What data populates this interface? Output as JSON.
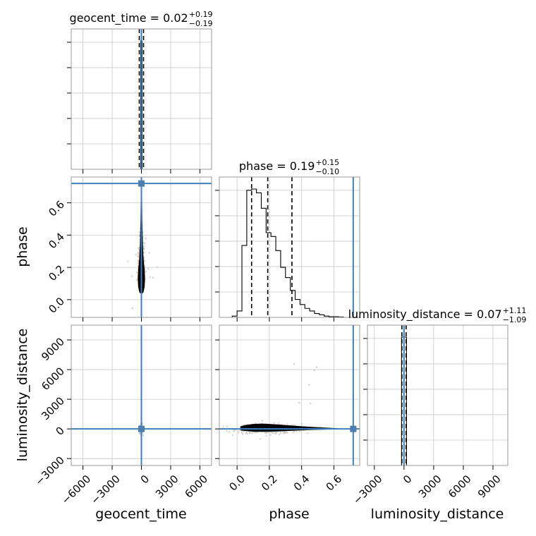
{
  "chart_data": {
    "type": "corner",
    "parameters": [
      "geocent_time",
      "phase",
      "luminosity_distance"
    ],
    "axis_labels": [
      "geocent_time",
      "phase",
      "luminosity_distance"
    ],
    "truths": {
      "geocent_time": 0.0,
      "phase": 0.72,
      "luminosity_distance": 0.0
    },
    "titles": [
      {
        "param": "geocent_time",
        "text": "geocent_time = 0.02",
        "upper": "+0.19",
        "lower": "−0.19",
        "median": 0.02,
        "plus": 0.19,
        "minus": 0.19
      },
      {
        "param": "phase",
        "text": "phase = 0.19",
        "upper": "+0.15",
        "lower": "−0.10",
        "median": 0.19,
        "plus": 0.15,
        "minus": 0.1
      },
      {
        "param": "luminosity_distance",
        "text": "luminosity_distance = 0.07",
        "upper": "+1.11",
        "lower": "−1.09",
        "median": 0.07,
        "plus": 1.11,
        "minus": 1.09
      }
    ],
    "ranges": {
      "geocent_time": [
        -7200,
        7200
      ],
      "phase": [
        -0.11,
        0.76
      ],
      "luminosity_distance": [
        -3700,
        10500
      ]
    },
    "ticks": {
      "geocent_time": {
        "values": [
          -6000,
          -3000,
          0,
          3000,
          6000
        ],
        "labels": [
          "−6000",
          "−3000",
          "0",
          "3000",
          "6000"
        ]
      },
      "phase": {
        "values": [
          0.0,
          0.2,
          0.4,
          0.6
        ],
        "labels": [
          "0.0",
          "0.2",
          "0.4",
          "0.6"
        ]
      },
      "luminosity_distance": {
        "values": [
          -3000,
          0,
          3000,
          6000,
          9000
        ],
        "labels": [
          "−3000",
          "0",
          "3000",
          "6000",
          "9000"
        ]
      }
    },
    "histograms": {
      "geocent_time": {
        "edges": [
          -70,
          70
        ],
        "heights": [
          1.0
        ]
      },
      "phase": {
        "edges": [
          -0.03,
          0.0,
          0.03,
          0.06,
          0.09,
          0.12,
          0.15,
          0.18,
          0.21,
          0.24,
          0.27,
          0.3,
          0.33,
          0.36,
          0.39,
          0.42,
          0.45,
          0.48,
          0.51,
          0.54,
          0.57,
          0.6,
          0.63,
          0.66,
          0.7
        ],
        "heights": [
          0.01,
          0.05,
          0.56,
          0.99,
          1.0,
          0.97,
          0.85,
          0.66,
          0.63,
          0.52,
          0.39,
          0.31,
          0.21,
          0.14,
          0.1,
          0.07,
          0.05,
          0.03,
          0.02,
          0.01,
          0.005,
          0.005,
          0.003,
          0.0
        ]
      },
      "luminosity_distance": {
        "edges": [
          -250,
          250
        ],
        "heights": [
          1.0
        ]
      }
    },
    "quantiles": {
      "geocent_time": [
        -0.17,
        0.02,
        0.21
      ],
      "phase": [
        0.09,
        0.19,
        0.34
      ],
      "luminosity_distance": [
        -1.02,
        0.07,
        1.18
      ]
    },
    "grid": true
  }
}
